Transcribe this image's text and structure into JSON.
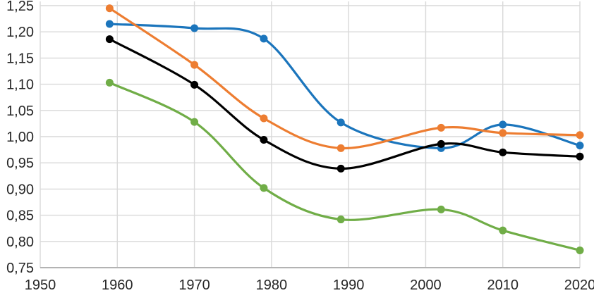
{
  "chart_data": {
    "type": "line",
    "title": "",
    "xlabel": "",
    "ylabel": "",
    "grid": true,
    "legend": "none",
    "smoothed": true,
    "marker": "circle",
    "x": [
      1959,
      1970,
      1979,
      1989,
      2002,
      2010,
      2020
    ],
    "series": [
      {
        "name": "blue-series",
        "color": "#1b75bc",
        "values": [
          1.215,
          1.207,
          1.187,
          1.027,
          0.978,
          1.023,
          0.983
        ]
      },
      {
        "name": "orange-series",
        "color": "#ed7d31",
        "values": [
          1.245,
          1.137,
          1.035,
          0.978,
          1.017,
          1.007,
          1.003
        ]
      },
      {
        "name": "black-series",
        "color": "#000000",
        "values": [
          1.186,
          1.099,
          0.994,
          0.939,
          0.986,
          0.97,
          0.962
        ]
      },
      {
        "name": "green-series",
        "color": "#70ad47",
        "values": [
          1.103,
          1.028,
          0.902,
          0.842,
          0.861,
          0.821,
          0.783
        ]
      }
    ],
    "x_axis": {
      "min": 1950,
      "max": 2020,
      "tick_step": 10,
      "tick_labels": [
        "1950",
        "1960",
        "1970",
        "1980",
        "1990",
        "2000",
        "2010",
        "2020"
      ]
    },
    "y_axis": {
      "min": 0.75,
      "max": 1.25,
      "tick_step": 0.05,
      "decimal_separator": ",",
      "tick_labels": [
        "0,75",
        "0,80",
        "0,85",
        "0,90",
        "0,95",
        "1,00",
        "1,05",
        "1,10",
        "1,15",
        "1,20",
        "1,25"
      ]
    }
  },
  "colors": {
    "background": "#ffffff",
    "gridline": "#d9d9d9",
    "axis_line": "#b3b3b3",
    "tick_label": "#262626"
  }
}
